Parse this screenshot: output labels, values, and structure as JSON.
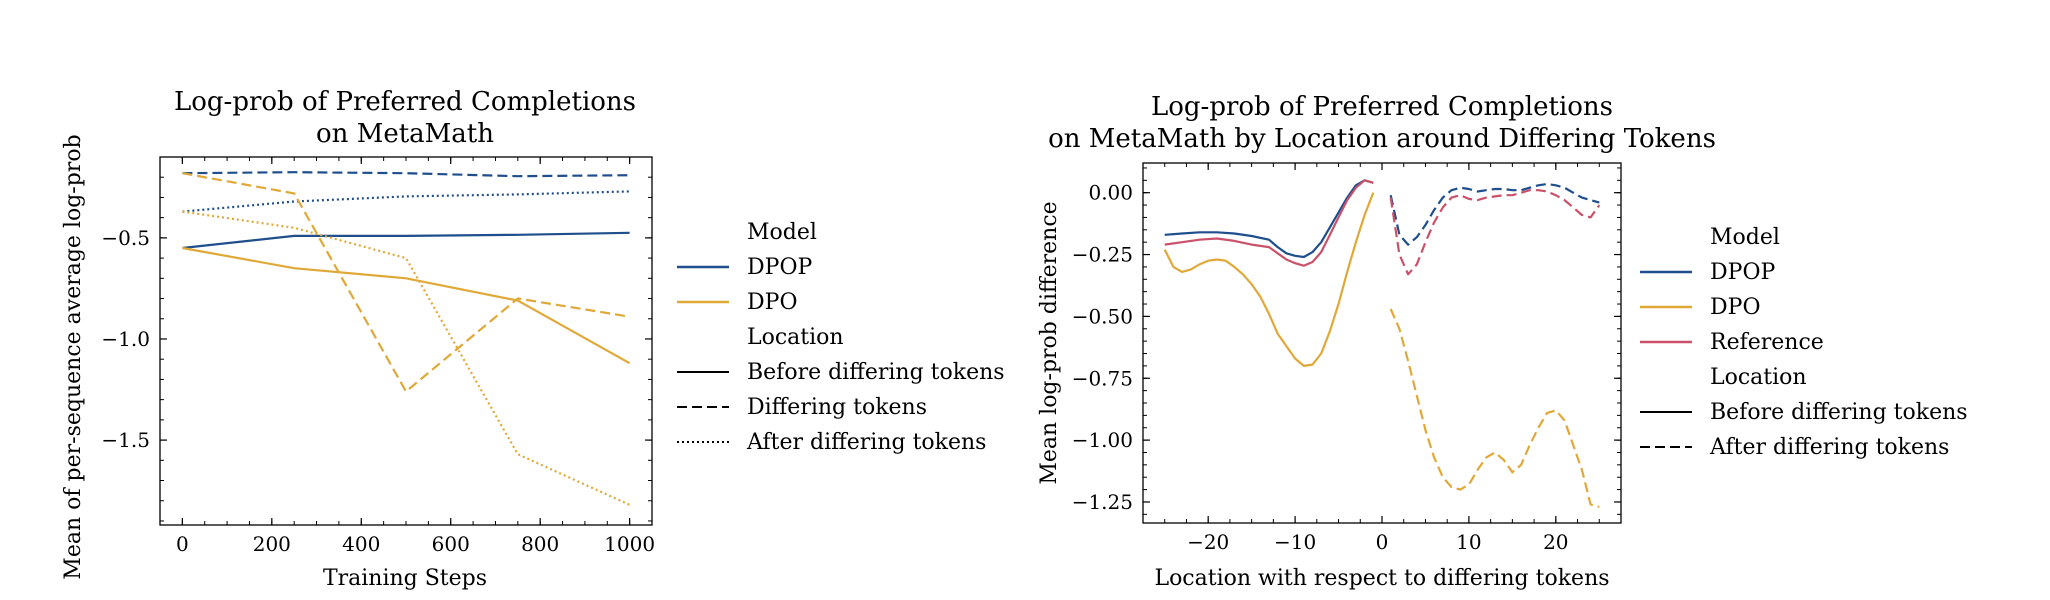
{
  "colors": {
    "DPOP": "#1f4e8c",
    "DPO": "#e0a837",
    "Reference": "#c9526a",
    "axis": "#000000"
  },
  "chart_data": [
    {
      "type": "line",
      "title": [
        "Log-prob of Preferred Completions",
        "on MetaMath"
      ],
      "xlabel": "Training Steps",
      "ylabel": "Mean of per-sequence average log-prob",
      "xlim": [
        -50,
        1050
      ],
      "ylim": [
        -1.92,
        -0.1
      ],
      "xticks": [
        0,
        200,
        400,
        600,
        800,
        1000
      ],
      "yticks": [
        -0.5,
        -1.0,
        -1.5
      ],
      "ytick_labels": [
        "−0.5",
        "−1.0",
        "−1.5"
      ],
      "legend": {
        "position": "right",
        "model_header": "Model",
        "models": [
          "DPOP",
          "DPO"
        ],
        "location_header": "Location",
        "locations": [
          {
            "label": "Before differing tokens",
            "style": "solid"
          },
          {
            "label": "Differing tokens",
            "style": "dashed"
          },
          {
            "label": "After differing tokens",
            "style": "dotted"
          }
        ]
      },
      "series": [
        {
          "model": "DPOP",
          "location": "Before differing tokens",
          "style": "solid",
          "x": [
            0,
            250,
            500,
            750,
            1000
          ],
          "y": [
            -0.55,
            -0.49,
            -0.49,
            -0.485,
            -0.475
          ]
        },
        {
          "model": "DPOP",
          "location": "Differing tokens",
          "style": "dashed",
          "x": [
            0,
            250,
            500,
            750,
            1000
          ],
          "y": [
            -0.18,
            -0.175,
            -0.18,
            -0.195,
            -0.19
          ]
        },
        {
          "model": "DPOP",
          "location": "After differing tokens",
          "style": "dotted",
          "x": [
            0,
            250,
            500,
            750,
            1000
          ],
          "y": [
            -0.37,
            -0.32,
            -0.295,
            -0.285,
            -0.27
          ]
        },
        {
          "model": "DPO",
          "location": "Before differing tokens",
          "style": "solid",
          "x": [
            0,
            250,
            500,
            750,
            1000
          ],
          "y": [
            -0.55,
            -0.65,
            -0.7,
            -0.81,
            -1.12
          ]
        },
        {
          "model": "DPO",
          "location": "Differing tokens",
          "style": "dashed",
          "x": [
            0,
            250,
            500,
            750,
            1000
          ],
          "y": [
            -0.18,
            -0.28,
            -1.26,
            -0.8,
            -0.89
          ]
        },
        {
          "model": "DPO",
          "location": "After differing tokens",
          "style": "dotted",
          "x": [
            0,
            250,
            500,
            750,
            1000
          ],
          "y": [
            -0.37,
            -0.45,
            -0.6,
            -1.57,
            -1.82
          ]
        }
      ]
    },
    {
      "type": "line",
      "title": [
        "Log-prob of Preferred Completions",
        "on MetaMath by Location around Differing Tokens"
      ],
      "xlabel": "Location with respect to differing tokens",
      "ylabel": "Mean log-prob difference",
      "xlim": [
        -27.5,
        27.5
      ],
      "ylim": [
        -1.335,
        0.12
      ],
      "xticks": [
        -20,
        -10,
        0,
        10,
        20
      ],
      "xtick_labels": [
        "−20",
        "−10",
        "0",
        "10",
        "20"
      ],
      "yticks": [
        0.0,
        -0.25,
        -0.5,
        -0.75,
        -1.0,
        -1.25
      ],
      "ytick_labels": [
        "0.00",
        "−0.25",
        "−0.50",
        "−0.75",
        "−1.00",
        "−1.25"
      ],
      "legend": {
        "position": "right",
        "model_header": "Model",
        "models": [
          "DPOP",
          "DPO",
          "Reference"
        ],
        "location_header": "Location",
        "locations": [
          {
            "label": "Before differing tokens",
            "style": "solid"
          },
          {
            "label": "After differing tokens",
            "style": "dashed"
          }
        ]
      },
      "series": [
        {
          "model": "DPOP",
          "location": "Before differing tokens",
          "style": "solid",
          "x": [
            -25,
            -23,
            -21,
            -19,
            -17,
            -15,
            -13,
            -12,
            -11,
            -10,
            -9,
            -8,
            -7,
            -6,
            -5,
            -4,
            -3,
            -2,
            -1
          ],
          "y": [
            -0.17,
            -0.165,
            -0.16,
            -0.16,
            -0.165,
            -0.175,
            -0.19,
            -0.22,
            -0.245,
            -0.255,
            -0.26,
            -0.24,
            -0.2,
            -0.14,
            -0.08,
            -0.02,
            0.03,
            0.05,
            0.04
          ]
        },
        {
          "model": "Reference",
          "location": "Before differing tokens",
          "style": "solid",
          "x": [
            -25,
            -23,
            -21,
            -19,
            -17,
            -15,
            -13,
            -12,
            -11,
            -10,
            -9,
            -8,
            -7,
            -6,
            -5,
            -4,
            -3,
            -2,
            -1
          ],
          "y": [
            -0.21,
            -0.2,
            -0.19,
            -0.185,
            -0.195,
            -0.21,
            -0.22,
            -0.245,
            -0.27,
            -0.285,
            -0.295,
            -0.28,
            -0.24,
            -0.17,
            -0.1,
            -0.03,
            0.02,
            0.05,
            0.04
          ]
        },
        {
          "model": "DPO",
          "location": "Before differing tokens",
          "style": "solid",
          "x": [
            -25,
            -24,
            -23,
            -22,
            -21,
            -20,
            -19,
            -18,
            -17,
            -16,
            -15,
            -14,
            -13,
            -12,
            -11,
            -10,
            -9,
            -8,
            -7,
            -6,
            -5,
            -4,
            -3,
            -2,
            -1
          ],
          "y": [
            -0.23,
            -0.3,
            -0.32,
            -0.31,
            -0.29,
            -0.275,
            -0.27,
            -0.275,
            -0.3,
            -0.33,
            -0.37,
            -0.42,
            -0.49,
            -0.57,
            -0.62,
            -0.67,
            -0.7,
            -0.695,
            -0.65,
            -0.56,
            -0.45,
            -0.32,
            -0.2,
            -0.09,
            0.0
          ]
        },
        {
          "model": "DPOP",
          "location": "After differing tokens",
          "style": "dashed",
          "x": [
            1,
            2,
            3,
            4,
            5,
            6,
            7,
            8,
            9,
            10,
            11,
            12,
            13,
            14,
            15,
            16,
            17,
            18,
            19,
            20,
            21,
            22,
            23,
            24,
            25
          ],
          "y": [
            -0.01,
            -0.17,
            -0.21,
            -0.18,
            -0.13,
            -0.07,
            -0.02,
            0.01,
            0.02,
            0.015,
            0.005,
            0.01,
            0.015,
            0.015,
            0.01,
            0.01,
            0.02,
            0.03,
            0.035,
            0.03,
            0.02,
            0.0,
            -0.02,
            -0.03,
            -0.04
          ]
        },
        {
          "model": "Reference",
          "location": "After differing tokens",
          "style": "dashed",
          "x": [
            1,
            2,
            3,
            4,
            5,
            6,
            7,
            8,
            9,
            10,
            11,
            12,
            13,
            14,
            15,
            16,
            17,
            18,
            19,
            20,
            21,
            22,
            23,
            24,
            25
          ],
          "y": [
            -0.02,
            -0.25,
            -0.33,
            -0.29,
            -0.2,
            -0.12,
            -0.06,
            -0.02,
            -0.01,
            -0.025,
            -0.03,
            -0.02,
            -0.015,
            -0.01,
            -0.01,
            0.0,
            0.01,
            0.01,
            0.005,
            -0.01,
            -0.03,
            -0.06,
            -0.09,
            -0.1,
            -0.05
          ]
        },
        {
          "model": "DPO",
          "location": "After differing tokens",
          "style": "dashed",
          "x": [
            1,
            2,
            3,
            4,
            5,
            6,
            7,
            8,
            9,
            10,
            11,
            12,
            13,
            14,
            15,
            16,
            17,
            18,
            19,
            20,
            21,
            22,
            23,
            24,
            25
          ],
          "y": [
            -0.47,
            -0.55,
            -0.68,
            -0.82,
            -0.96,
            -1.07,
            -1.15,
            -1.19,
            -1.2,
            -1.18,
            -1.12,
            -1.07,
            -1.05,
            -1.08,
            -1.13,
            -1.1,
            -1.02,
            -0.95,
            -0.89,
            -0.88,
            -0.92,
            -1.02,
            -1.12,
            -1.26,
            -1.27
          ]
        }
      ]
    }
  ]
}
